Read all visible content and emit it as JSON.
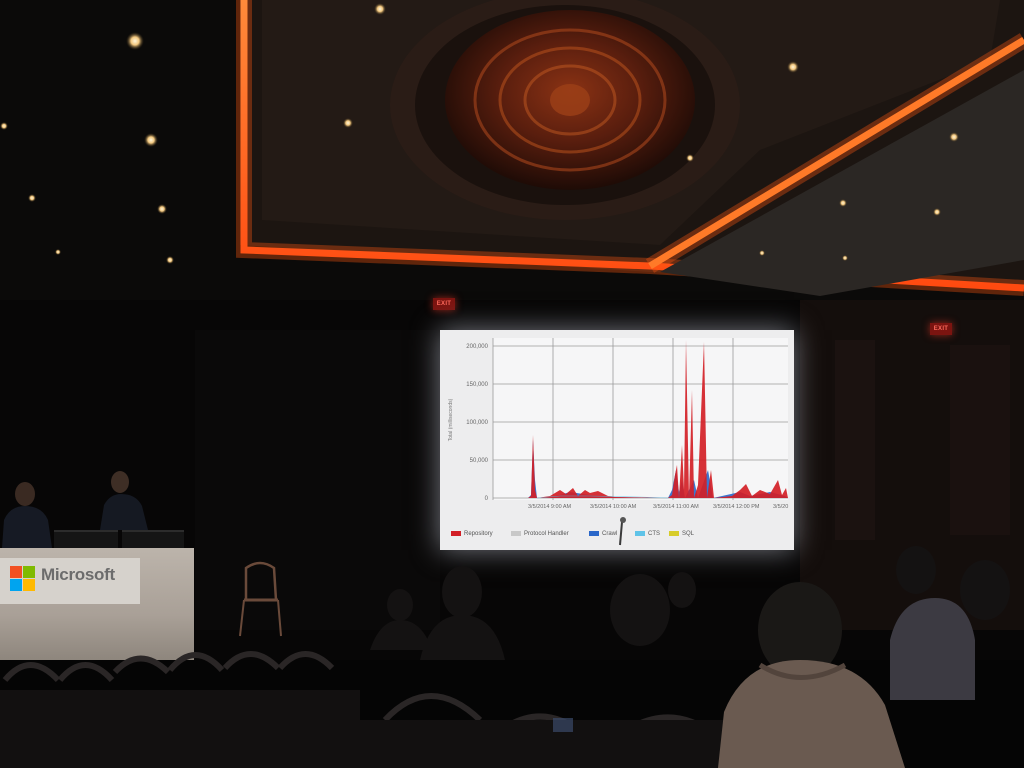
{
  "scene": {
    "description_free": true,
    "colors": {
      "ceiling_glow": "#ff6a1e",
      "screen_bg": "#ebebec",
      "podium": "#b4aca3",
      "exit_sign": "#ff3a2c"
    }
  },
  "podium": {
    "brand": "Microsoft",
    "logo_colors": [
      "#f25022",
      "#7fba00",
      "#00a4ef",
      "#ffb900"
    ]
  },
  "exit_signs": [
    "EXIT",
    "EXIT"
  ],
  "slide": {
    "y_axis_label": "Total (milliseconds)",
    "y_ticks": [
      "200,000",
      "150,000",
      "100,000",
      "50,000",
      "0"
    ],
    "x_ticks": [
      "3/5/2014 9:00 AM",
      "3/5/2014 10:00 AM",
      "3/5/2014 11:00 AM",
      "3/5/2014 12:00 PM",
      "3/5/20"
    ],
    "legend": [
      {
        "label": "Repository",
        "color": "#d21f26"
      },
      {
        "label": "Protocol Handler",
        "color": "#c8c8c8"
      },
      {
        "label": "Crawl",
        "color": "#2a67c9"
      },
      {
        "label": "CTS",
        "color": "#5fc3e8"
      },
      {
        "label": "SQL",
        "color": "#d7cc2a"
      }
    ],
    "chart_data": {
      "type": "area",
      "ylim": [
        0,
        200000
      ],
      "series": [
        {
          "name": "Repository",
          "peaks": [
            [
              0.03,
              85000
            ],
            [
              0.62,
              40000
            ],
            [
              0.66,
              110000
            ],
            [
              0.68,
              210000
            ],
            [
              0.72,
              200000
            ],
            [
              0.85,
              25000
            ]
          ]
        },
        {
          "name": "Crawl",
          "peaks": [
            [
              0.03,
              80000
            ],
            [
              0.68,
              100000
            ],
            [
              0.72,
              60000
            ]
          ]
        }
      ]
    }
  }
}
